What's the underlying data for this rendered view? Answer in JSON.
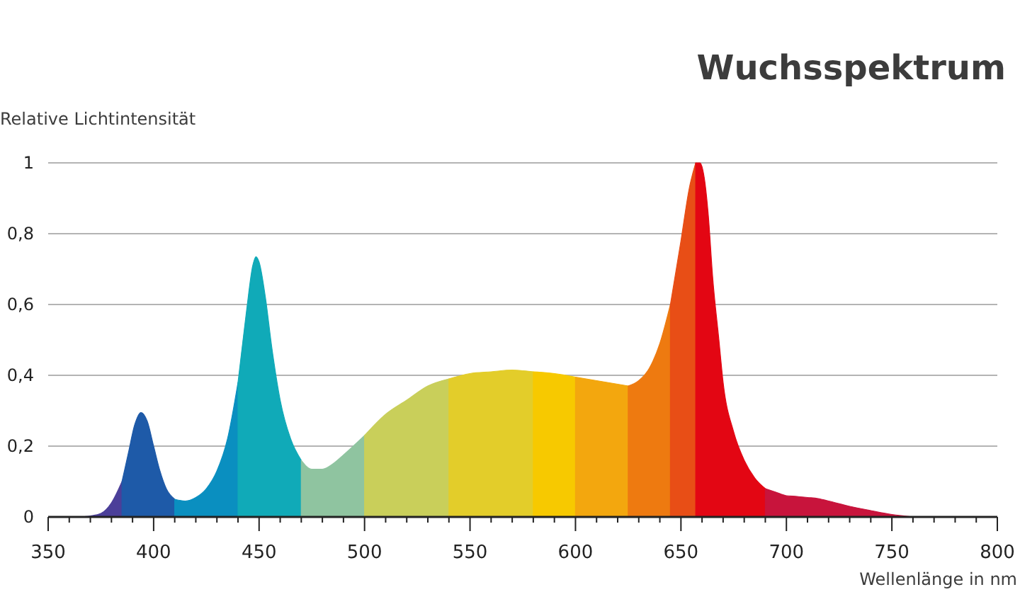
{
  "chart_data": {
    "type": "area",
    "title": "Wuchsspektrum",
    "ylabel": "Relative Lichtintensität",
    "xlabel": "Wellenlänge in nm",
    "xlim": [
      350,
      800
    ],
    "ylim": [
      0,
      1
    ],
    "xticks": [
      350,
      {
        "value": 360,
        "label": null
      },
      {
        "value": 370,
        "label": null
      },
      {
        "value": 380,
        "label": null
      },
      {
        "value": 390,
        "label": null
      },
      400,
      {
        "value": 410,
        "label": null
      },
      {
        "value": 420,
        "label": null
      },
      {
        "value": 430,
        "label": null
      },
      {
        "value": 440,
        "label": null
      },
      450,
      {
        "value": 460,
        "label": null
      },
      {
        "value": 470,
        "label": null
      },
      {
        "value": 480,
        "label": null
      },
      {
        "value": 490,
        "label": null
      },
      500,
      {
        "value": 510,
        "label": null
      },
      {
        "value": 520,
        "label": null
      },
      {
        "value": 530,
        "label": null
      },
      {
        "value": 540,
        "label": null
      },
      550,
      {
        "value": 560,
        "label": null
      },
      {
        "value": 570,
        "label": null
      },
      {
        "value": 580,
        "label": null
      },
      {
        "value": 590,
        "label": null
      },
      600,
      {
        "value": 610,
        "label": null
      },
      {
        "value": 620,
        "label": null
      },
      {
        "value": 630,
        "label": null
      },
      {
        "value": 640,
        "label": null
      },
      650,
      {
        "value": 660,
        "label": null
      },
      {
        "value": 670,
        "label": null
      },
      {
        "value": 680,
        "label": null
      },
      {
        "value": 690,
        "label": null
      },
      700,
      {
        "value": 710,
        "label": null
      },
      {
        "value": 720,
        "label": null
      },
      {
        "value": 730,
        "label": null
      },
      {
        "value": 740,
        "label": null
      },
      750,
      {
        "value": 760,
        "label": null
      },
      {
        "value": 770,
        "label": null
      },
      {
        "value": 780,
        "label": null
      },
      {
        "value": 790,
        "label": null
      },
      800
    ],
    "yticks": [
      0,
      {
        "value": 0.2,
        "label": "0,2"
      },
      {
        "value": 0.4,
        "label": "0,4"
      },
      {
        "value": 0.6,
        "label": "0,6"
      },
      {
        "value": 0.8,
        "label": "0,8"
      },
      1
    ],
    "grid": "y",
    "series": [
      {
        "color": "#4b3f99",
        "x": [
          365,
          370,
          375,
          380,
          385
        ],
        "values": [
          0,
          0.003,
          0.01,
          0.04,
          0.1
        ]
      },
      {
        "color": "#1e5aa8",
        "x": [
          385,
          388,
          391,
          394,
          397,
          400,
          403,
          406,
          410
        ],
        "values": [
          0.1,
          0.18,
          0.26,
          0.295,
          0.27,
          0.2,
          0.13,
          0.08,
          0.05
        ]
      },
      {
        "color": "#0a8fc0",
        "x": [
          410,
          415,
          420,
          425,
          430,
          435,
          440
        ],
        "values": [
          0.05,
          0.045,
          0.055,
          0.08,
          0.13,
          0.22,
          0.38
        ]
      },
      {
        "color": "#10aab8",
        "x": [
          440,
          444,
          447,
          448.5,
          450,
          453,
          456,
          460,
          465,
          470
        ],
        "values": [
          0.38,
          0.58,
          0.71,
          0.735,
          0.72,
          0.62,
          0.48,
          0.33,
          0.22,
          0.16
        ]
      },
      {
        "color": "#8fc4a0",
        "x": [
          470,
          475,
          480,
          485,
          490,
          500
        ],
        "values": [
          0.16,
          0.135,
          0.135,
          0.15,
          0.175,
          0.23
        ]
      },
      {
        "color": "#c9cf5a",
        "x": [
          500,
          510,
          520,
          530,
          540
        ],
        "values": [
          0.23,
          0.29,
          0.33,
          0.37,
          0.39
        ]
      },
      {
        "color": "#e3cd2a",
        "x": [
          540,
          550,
          560,
          570,
          580
        ],
        "values": [
          0.39,
          0.405,
          0.41,
          0.415,
          0.41
        ]
      },
      {
        "color": "#f7c900",
        "x": [
          580,
          590,
          600
        ],
        "values": [
          0.41,
          0.405,
          0.395
        ]
      },
      {
        "color": "#f3a70e",
        "x": [
          600,
          610,
          620,
          625
        ],
        "values": [
          0.395,
          0.385,
          0.375,
          0.37
        ]
      },
      {
        "color": "#ee7a10",
        "x": [
          625,
          630,
          635,
          640,
          645
        ],
        "values": [
          0.37,
          0.385,
          0.42,
          0.49,
          0.6
        ]
      },
      {
        "color": "#e84e16",
        "x": [
          645,
          650,
          654,
          657
        ],
        "values": [
          0.6,
          0.78,
          0.93,
          1.0
        ]
      },
      {
        "color": "#e30613",
        "x": [
          657,
          659,
          661,
          663,
          665,
          668,
          670,
          675,
          680,
          685,
          690
        ],
        "values": [
          1.0,
          1.0,
          0.96,
          0.85,
          0.68,
          0.5,
          0.38,
          0.24,
          0.16,
          0.11,
          0.08
        ]
      },
      {
        "color": "#c8143c",
        "x": [
          690,
          695,
          700,
          705,
          710,
          715,
          720,
          730,
          740,
          750,
          760
        ],
        "values": [
          0.08,
          0.07,
          0.06,
          0.058,
          0.055,
          0.052,
          0.045,
          0.03,
          0.018,
          0.007,
          0
        ]
      }
    ]
  }
}
